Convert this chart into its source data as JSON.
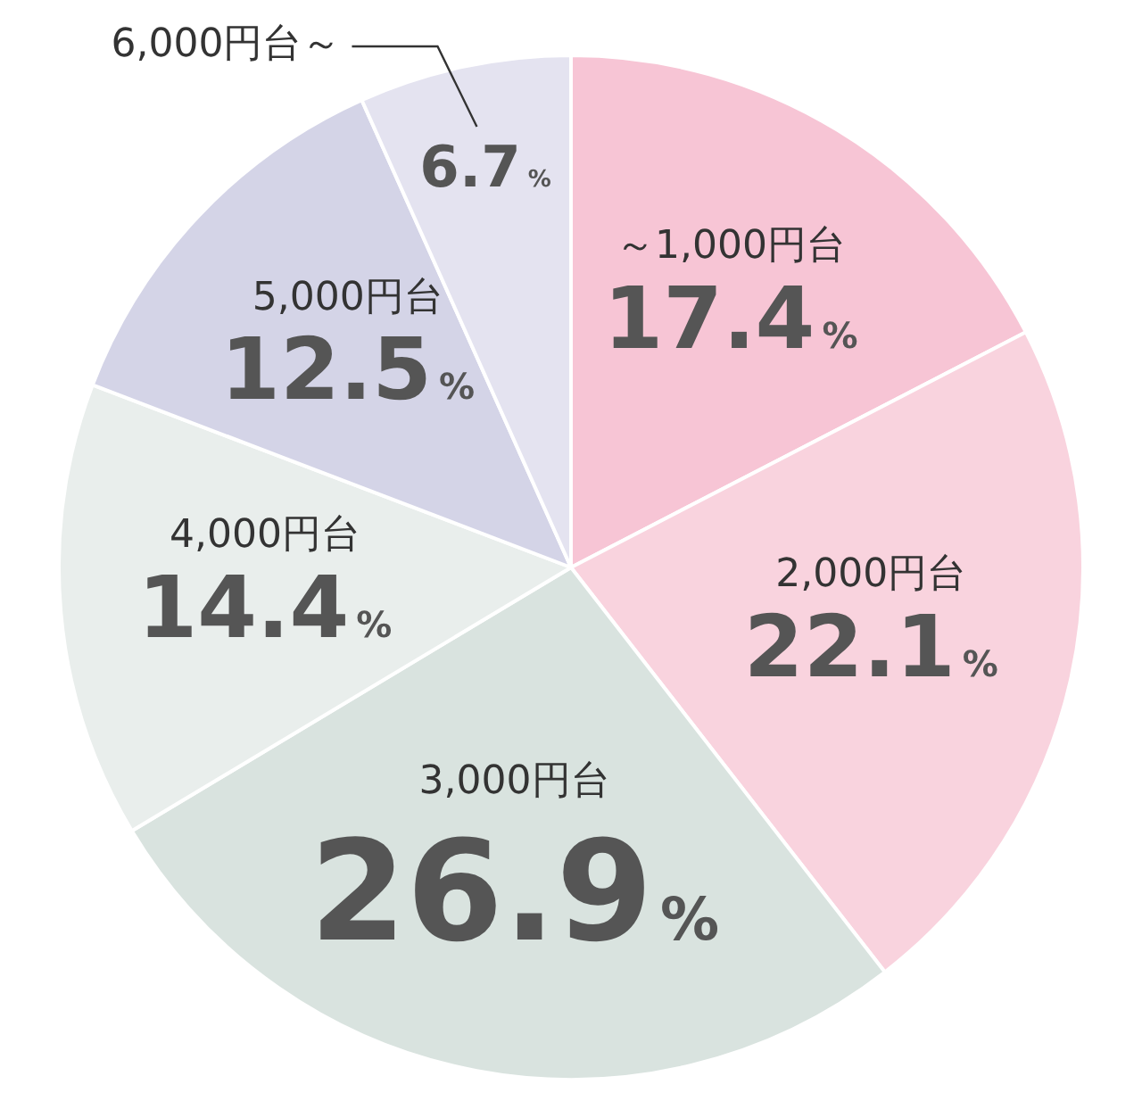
{
  "chart_data": {
    "type": "pie",
    "categories": [
      "～1,000円台",
      "2,000円台",
      "3,000円台",
      "4,000円台",
      "5,000円台",
      "6,000円台～"
    ],
    "values": [
      17.4,
      22.1,
      26.9,
      14.4,
      12.5,
      6.7
    ],
    "value_labels": [
      "17.4%",
      "22.1%",
      "26.9%",
      "14.4%",
      "12.5%",
      "6.7%"
    ],
    "colors": [
      "#f7c5d5",
      "#f9d3de",
      "#d9e3df",
      "#e9eeec",
      "#d4d4e7",
      "#e4e3f0"
    ],
    "legend": false
  }
}
